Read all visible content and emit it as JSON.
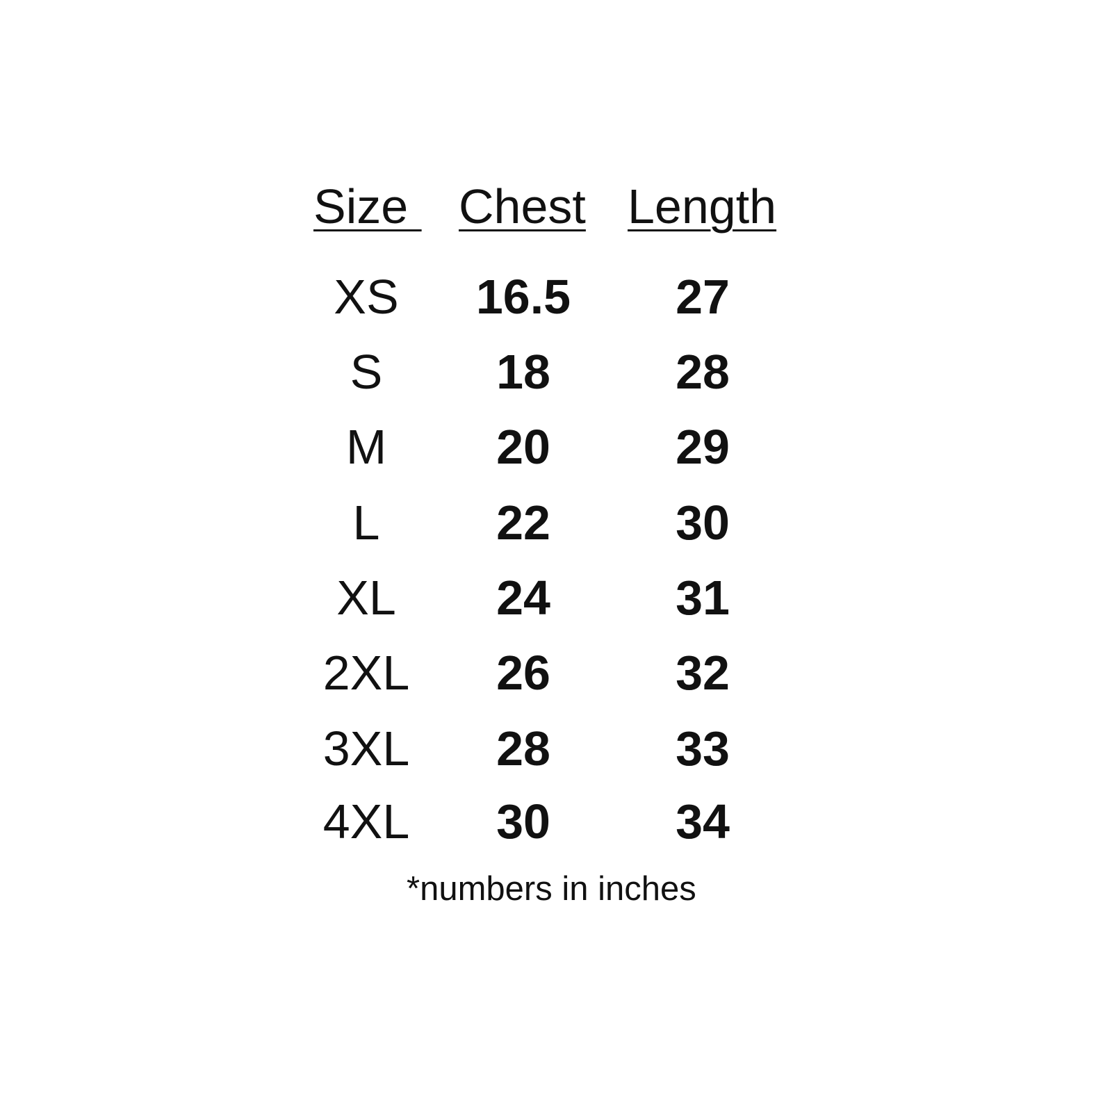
{
  "headers": [
    "Size ",
    "Chest",
    "Length"
  ],
  "rows": [
    {
      "size": "XS",
      "chest": "16.5",
      "length": "27"
    },
    {
      "size": "S",
      "chest": "18",
      "length": "28"
    },
    {
      "size": "M",
      "chest": "20",
      "length": "29"
    },
    {
      "size": "L",
      "chest": "22",
      "length": "30"
    },
    {
      "size": "XL",
      "chest": "24",
      "length": "31"
    },
    {
      "size": "2XL",
      "chest": "26",
      "length": "32"
    },
    {
      "size": "3XL",
      "chest": "28",
      "length": "33"
    },
    {
      "size": "4XL",
      "chest": "30",
      "length": "34"
    }
  ],
  "footnote": "*numbers in inches"
}
